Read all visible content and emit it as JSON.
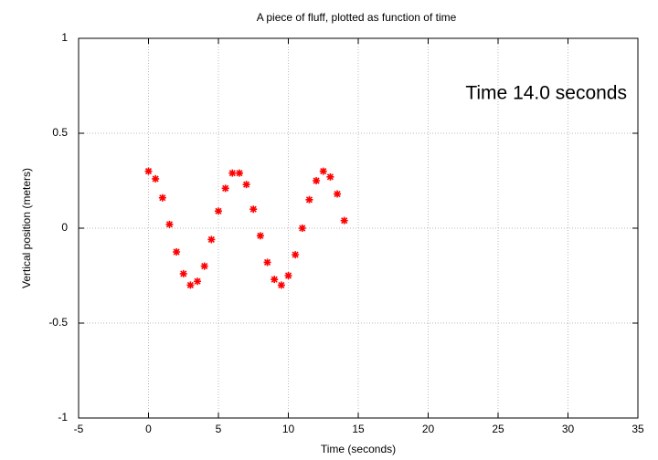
{
  "chart_data": {
    "type": "scatter",
    "title": "A piece of fluff, plotted as function of time",
    "x_label": "Time (seconds)",
    "y_label": "Vertical position (meters)",
    "annotation": "Time 14.0 seconds",
    "series": [
      {
        "name": null,
        "color": "#ff0000",
        "x": [
          0,
          0.5,
          1,
          1.5,
          2,
          2.5,
          3,
          3.5,
          4,
          4.5,
          5,
          5.5,
          6,
          6.5,
          7,
          7.5,
          8,
          8.5,
          9,
          9.5,
          10,
          10.5,
          11,
          11.5,
          12,
          12.5,
          13,
          13.5,
          14
        ],
        "values": [
          0.3,
          0.26,
          0.16,
          0.02,
          -0.125,
          -0.24,
          -0.3,
          -0.28,
          -0.2,
          -0.06,
          0.09,
          0.21,
          0.29,
          0.29,
          0.23,
          0.1,
          -0.04,
          -0.18,
          -0.27,
          -0.3,
          -0.25,
          -0.14,
          0.0,
          0.15,
          0.25,
          0.3,
          0.27,
          0.18,
          0.04
        ]
      }
    ],
    "xlim": [
      -5,
      35
    ],
    "xticks": [
      -5,
      0,
      5,
      10,
      15,
      20,
      25,
      30,
      35
    ],
    "ylim": [
      -1,
      1
    ],
    "yticks": [
      -1,
      -0.5,
      0,
      0.5,
      1
    ],
    "grid": true
  }
}
